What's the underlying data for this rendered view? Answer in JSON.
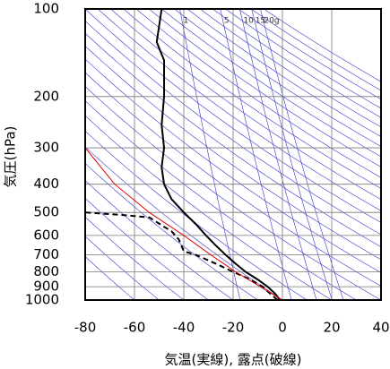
{
  "chart_data": {
    "type": "line",
    "xlabel": "気温(実線), 露点(破線)",
    "ylabel": "気圧(hPa)",
    "xlim": [
      -80,
      40
    ],
    "xticks": [
      -80,
      -60,
      -40,
      -20,
      0,
      20,
      40
    ],
    "ylim": [
      1000,
      100
    ],
    "yticks": [
      100,
      200,
      300,
      400,
      500,
      600,
      700,
      800,
      900,
      1000
    ],
    "log_y": true,
    "grid": true,
    "mixing_ratio_labels": [
      {
        "value": 1,
        "label": "1"
      },
      {
        "value": 5,
        "label": "5"
      },
      {
        "value": 10,
        "label": "10"
      },
      {
        "value": 15,
        "label": "15"
      },
      {
        "value": 20,
        "label": "20g"
      }
    ],
    "mixing_ratio_color": "#3333cc",
    "adiabat_color": "#3333cc",
    "series": [
      {
        "color": "#000000",
        "dash": false,
        "y": [
          1000,
          950,
          900,
          850,
          800,
          750,
          700,
          650,
          600,
          550,
          500,
          450,
          400,
          350,
          300,
          250,
          200,
          150,
          130,
          100
        ],
        "x": [
          -1,
          -3,
          -6,
          -10,
          -15,
          -19,
          -23,
          -27,
          -31,
          -35,
          -40,
          -45,
          -48,
          -49,
          -48,
          -49,
          -48,
          -48,
          -51,
          -49
        ]
      },
      {
        "color": "#000000",
        "dash": true,
        "y": [
          1000,
          950,
          900,
          850,
          800,
          750,
          700,
          680,
          620,
          580,
          560,
          520,
          510,
          500
        ],
        "x": [
          -2,
          -5,
          -8,
          -13,
          -20,
          -27,
          -35,
          -40,
          -42,
          -45,
          -48,
          -54,
          -65,
          -80
        ]
      },
      {
        "color": "#dd0000",
        "dash": false,
        "y": [
          1000,
          900,
          800,
          700,
          600,
          500,
          400,
          300
        ],
        "x": [
          0,
          -9,
          -19,
          -29,
          -40,
          -54,
          -68,
          -80
        ]
      }
    ]
  }
}
